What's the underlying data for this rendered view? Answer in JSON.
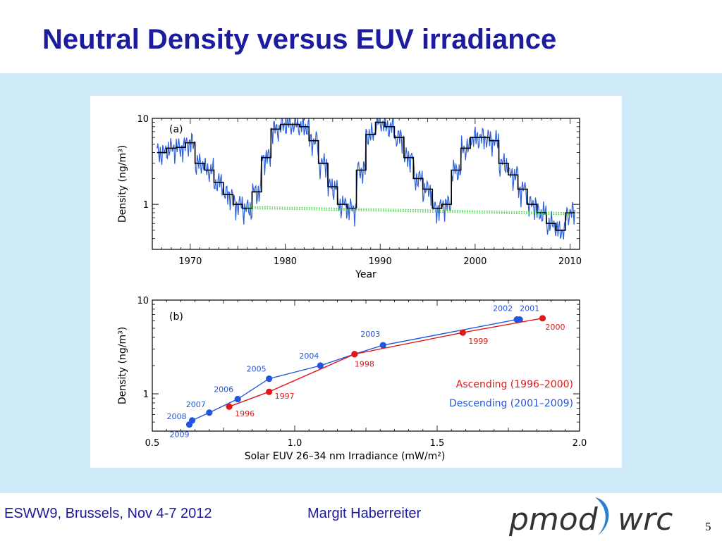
{
  "slide": {
    "title": "Neutral Density versus EUV irradiance",
    "footer_event": "ESWW9, Brussels, Nov 4-7 2012",
    "footer_author": "Margit Haberreiter",
    "page_number": "5",
    "logo_left": "pmod",
    "logo_right": "wrc"
  },
  "colors": {
    "title": "#1c1c9c",
    "band": "#cfeaf9",
    "ascending": "#e01818",
    "descending": "#2255dd",
    "monthly_line": "#2b5fd9",
    "annual_step": "#000000",
    "trend": "#22cc22"
  },
  "chart_data": [
    {
      "type": "line",
      "panel_label": "(a)",
      "xlabel": "Year",
      "ylabel": "Density  (ng/m³)",
      "x_ticks": [
        1970,
        1980,
        1990,
        2000,
        2010
      ],
      "y_ticks": [
        1,
        10
      ],
      "xlim": [
        1966,
        2011
      ],
      "ylim": [
        0.3,
        10
      ],
      "y_scale": "log",
      "series": [
        {
          "style": "annual-step",
          "x": [
            1967,
            1968,
            1969,
            1970,
            1971,
            1972,
            1973,
            1974,
            1975,
            1976,
            1977,
            1978,
            1979,
            1980,
            1981,
            1982,
            1983,
            1984,
            1985,
            1986,
            1987,
            1988,
            1989,
            1990,
            1991,
            1992,
            1993,
            1994,
            1995,
            1996,
            1997,
            1998,
            1999,
            2000,
            2001,
            2002,
            2003,
            2004,
            2005,
            2006,
            2007,
            2008,
            2009,
            2010
          ],
          "y": [
            4.0,
            4.5,
            4.6,
            5.2,
            3.0,
            2.5,
            1.8,
            1.3,
            1.0,
            0.9,
            1.4,
            3.5,
            7.5,
            8.5,
            8.5,
            8.0,
            5.5,
            3.0,
            1.6,
            1.0,
            0.9,
            2.5,
            6.5,
            9.0,
            8.0,
            6.0,
            3.5,
            2.0,
            1.5,
            0.9,
            1.0,
            2.5,
            4.5,
            6.0,
            6.0,
            5.5,
            3.0,
            2.2,
            1.5,
            1.0,
            0.8,
            0.6,
            0.5,
            0.8
          ]
        },
        {
          "style": "trend-dotted",
          "x": [
            1976,
            2010
          ],
          "y": [
            0.92,
            0.78
          ]
        }
      ]
    },
    {
      "type": "line",
      "panel_label": "(b)",
      "xlabel": "Solar EUV 26–34 nm Irradiance (mW/m²)",
      "ylabel": "Density  (ng/m³)",
      "x_ticks": [
        "0.5",
        "1.0",
        "1.5",
        "2.0"
      ],
      "y_ticks": [
        1,
        10
      ],
      "xlim": [
        0.5,
        2.0
      ],
      "ylim": [
        0.4,
        10
      ],
      "y_scale": "log",
      "series": [
        {
          "name": "Ascending (1996–2000)",
          "color": "#e01818",
          "points": [
            {
              "label": "1996",
              "x": 0.77,
              "y": 0.73
            },
            {
              "label": "1997",
              "x": 0.91,
              "y": 1.05
            },
            {
              "label": "1998",
              "x": 1.21,
              "y": 2.65
            },
            {
              "label": "1999",
              "x": 1.59,
              "y": 4.5
            },
            {
              "label": "2000",
              "x": 1.87,
              "y": 6.4
            }
          ]
        },
        {
          "name": "Descending (2001–2009)",
          "color": "#2255dd",
          "points": [
            {
              "label": "2009",
              "x": 0.63,
              "y": 0.47
            },
            {
              "label": "2008",
              "x": 0.64,
              "y": 0.52
            },
            {
              "label": "2007",
              "x": 0.7,
              "y": 0.63
            },
            {
              "label": "2006",
              "x": 0.8,
              "y": 0.88
            },
            {
              "label": "2005",
              "x": 0.91,
              "y": 1.45
            },
            {
              "label": "2004",
              "x": 1.09,
              "y": 2.0
            },
            {
              "label": "1998",
              "x": 1.21,
              "y": 2.65
            },
            {
              "label": "2003",
              "x": 1.31,
              "y": 3.3
            },
            {
              "label": "2002",
              "x": 1.78,
              "y": 6.2
            },
            {
              "label": "2001",
              "x": 1.79,
              "y": 6.2
            }
          ]
        }
      ]
    }
  ]
}
